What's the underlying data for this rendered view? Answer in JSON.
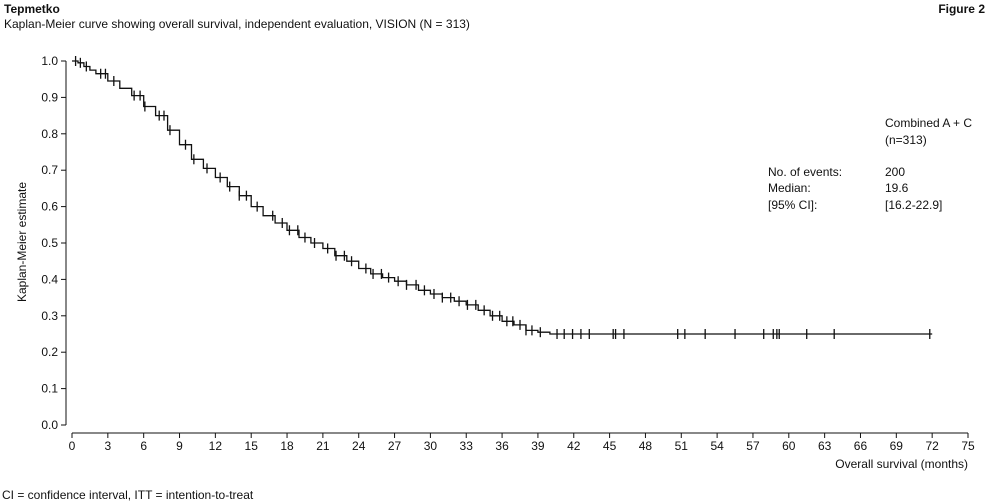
{
  "header": {
    "brand": "Tepmetko",
    "subtitle": "Kaplan-Meier curve showing overall survival, independent evaluation, VISION (N = 313)",
    "figure_label": "Figure 2"
  },
  "footnote": "CI = confidence interval, ITT = intention-to-treat",
  "chart_data": {
    "type": "line",
    "title": "",
    "xlabel": "Overall survival (months)",
    "ylabel": "Kaplan-Meier estimate",
    "xlim": [
      0,
      75
    ],
    "ylim": [
      0,
      1.0
    ],
    "xticks": [
      "0",
      "3",
      "6",
      "9",
      "12",
      "15",
      "18",
      "21",
      "24",
      "27",
      "30",
      "33",
      "36",
      "39",
      "42",
      "45",
      "48",
      "51",
      "54",
      "57",
      "60",
      "63",
      "66",
      "69",
      "72",
      "75"
    ],
    "yticks": [
      "0.0",
      "0.1",
      "0.2",
      "0.3",
      "0.4",
      "0.5",
      "0.6",
      "0.7",
      "0.8",
      "0.9",
      "1.0"
    ],
    "grid": false,
    "legend": {
      "series_name": "Combined A + C",
      "n": "(n=313)",
      "stats": [
        {
          "label": "No. of events:",
          "value": "200"
        },
        {
          "label": "Median:",
          "value": "19.6"
        },
        {
          "label": "[95% CI]:",
          "value": "[16.2-22.9]"
        }
      ]
    },
    "series": [
      {
        "name": "Combined A + C",
        "color": "#111111",
        "x": [
          0,
          0.5,
          1,
          1.5,
          2,
          3,
          4,
          5,
          6,
          7,
          8,
          9,
          10,
          11,
          12,
          13,
          14,
          15,
          16,
          17,
          18,
          19,
          20,
          21,
          22,
          23,
          24,
          25,
          26,
          27,
          28,
          29,
          30,
          31,
          32,
          33,
          34,
          35,
          36,
          37,
          38,
          39,
          40,
          72
        ],
        "y": [
          1.0,
          0.995,
          0.985,
          0.975,
          0.965,
          0.945,
          0.925,
          0.905,
          0.875,
          0.85,
          0.81,
          0.77,
          0.73,
          0.705,
          0.68,
          0.655,
          0.63,
          0.6,
          0.575,
          0.555,
          0.535,
          0.515,
          0.5,
          0.485,
          0.465,
          0.45,
          0.43,
          0.415,
          0.405,
          0.395,
          0.385,
          0.37,
          0.36,
          0.35,
          0.34,
          0.33,
          0.315,
          0.3,
          0.285,
          0.275,
          0.26,
          0.255,
          0.25,
          0.25
        ],
        "censored_x": [
          0.3,
          0.7,
          1.2,
          2.4,
          2.8,
          3.5,
          5.2,
          5.7,
          6.1,
          7.3,
          7.7,
          8.2,
          9.5,
          10.2,
          11.3,
          12.4,
          13.2,
          14.0,
          14.6,
          15.5,
          16.8,
          17.6,
          18.2,
          18.9,
          19.5,
          20.3,
          21.4,
          22.1,
          22.8,
          23.4,
          24.6,
          25.2,
          25.9,
          26.5,
          27.3,
          28.0,
          28.8,
          29.5,
          30.3,
          31.0,
          31.7,
          32.4,
          33.1,
          33.8,
          34.5,
          35.2,
          35.8,
          36.4,
          36.9,
          37.5,
          38.0,
          38.5,
          39.2,
          40.6,
          41.2,
          41.9,
          42.6,
          43.3,
          45.3,
          45.5,
          46.2,
          50.7,
          51.3,
          53.0,
          55.5,
          57.9,
          58.7,
          59.0,
          59.2,
          61.5,
          63.8,
          71.8
        ]
      }
    ]
  }
}
